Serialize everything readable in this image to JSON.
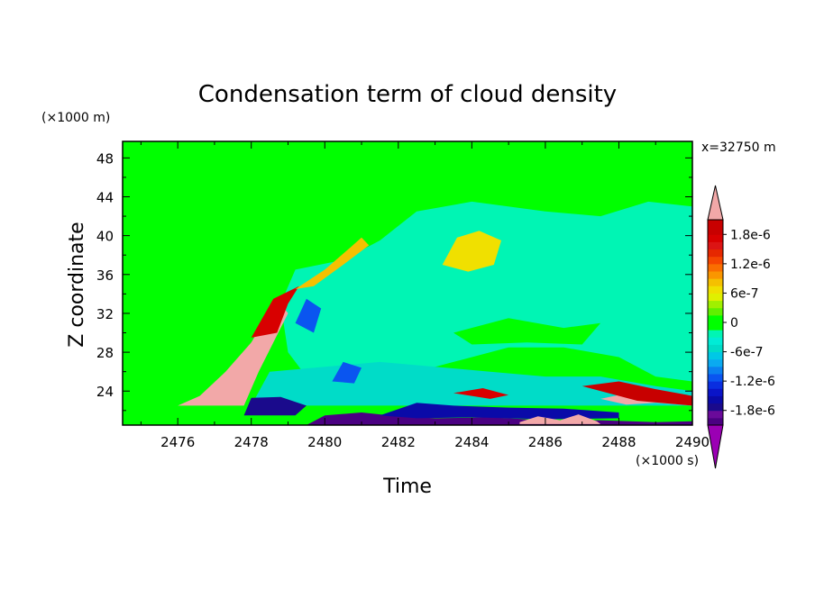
{
  "chart_data": {
    "type": "heatmap",
    "title": "Condensation term of cloud density",
    "xlabel": "Time",
    "ylabel": "Z coordinate",
    "x_unit": "(×1000 s)",
    "y_unit": "(×1000 m)",
    "annotation": "x=32750 m",
    "xlim": [
      2474.5,
      2490
    ],
    "ylim": [
      20.5,
      49.7
    ],
    "x_ticks": [
      2476,
      2478,
      2480,
      2482,
      2484,
      2486,
      2488,
      2490
    ],
    "x_tick_labels": [
      "2476",
      "2478",
      "2480",
      "2482",
      "2484",
      "2486",
      "2488",
      "2490"
    ],
    "y_ticks": [
      24,
      28,
      32,
      36,
      40,
      44,
      48
    ],
    "y_tick_labels": [
      "24",
      "28",
      "32",
      "36",
      "40",
      "44",
      "48"
    ],
    "colorbar": {
      "levels": [
        -2.1e-06,
        -1.95e-06,
        -1.8e-06,
        -1.65e-06,
        -1.5e-06,
        -1.35e-06,
        -1.2e-06,
        -1.05e-06,
        -9e-07,
        -7.5e-07,
        -6e-07,
        -4.5e-07,
        -3e-07,
        -1.5e-07,
        0,
        1.5e-07,
        3e-07,
        4.5e-07,
        6e-07,
        7.5e-07,
        9e-07,
        1.05e-06,
        1.2e-06,
        1.35e-06,
        1.5e-06,
        1.65e-06,
        1.8e-06,
        1.95e-06,
        2.1e-06
      ],
      "colors": [
        "#4b0082",
        "#6a0a9a",
        "#1a0a8c",
        "#0a0aa8",
        "#0a14c8",
        "#0a2ee0",
        "#0a55f0",
        "#0a80f0",
        "#0aaaf0",
        "#00c8e6",
        "#00dcc8",
        "#00ecd6",
        "#00f5b4",
        "#00ff00",
        "#00ff00",
        "#60f000",
        "#a0f000",
        "#e0f000",
        "#f0e000",
        "#f5c000",
        "#fa9600",
        "#fa6e00",
        "#f54600",
        "#e62800",
        "#dc1414",
        "#d80000",
        "#c80000",
        "#c80000"
      ],
      "under_color": "#9b00b4",
      "over_color": "#f2a8a8",
      "labels": [
        "1.8e-6",
        "1.2e-6",
        "6e-7",
        "0",
        "-6e-7",
        "-1.2e-6",
        "-1.8e-6"
      ],
      "label_values": [
        1.8e-06,
        1.2e-06,
        6e-07,
        0,
        -6e-07,
        -1.2e-06,
        -1.8e-06
      ]
    },
    "background_color": "#00ff00",
    "regions": [
      {
        "name": "upper-cyan-band",
        "value": -3e-07,
        "polygon": [
          [
            2479.2,
            36.5
          ],
          [
            2480.5,
            37.5
          ],
          [
            2481.5,
            39.5
          ],
          [
            2482.5,
            42.5
          ],
          [
            2484,
            43.5
          ],
          [
            2486,
            42.5
          ],
          [
            2487.5,
            42
          ],
          [
            2488.8,
            43.5
          ],
          [
            2490,
            43
          ],
          [
            2490,
            25
          ],
          [
            2489,
            25.5
          ],
          [
            2488,
            27.5
          ],
          [
            2486.5,
            28.5
          ],
          [
            2485,
            28.5
          ],
          [
            2483.5,
            27
          ],
          [
            2482,
            25.5
          ],
          [
            2480.5,
            25
          ],
          [
            2479.5,
            25.5
          ],
          [
            2479,
            28
          ],
          [
            2478.8,
            33
          ]
        ]
      },
      {
        "name": "lower-light-blue",
        "value": -6e-07,
        "polygon": [
          [
            2478.5,
            26
          ],
          [
            2480,
            26.5
          ],
          [
            2481.5,
            27
          ],
          [
            2483,
            26.5
          ],
          [
            2484.5,
            26
          ],
          [
            2486,
            25.5
          ],
          [
            2487.5,
            25.5
          ],
          [
            2489,
            24.5
          ],
          [
            2490,
            24
          ],
          [
            2490,
            22.5
          ],
          [
            2478,
            22.5
          ]
        ]
      },
      {
        "name": "green-islands",
        "value": 0,
        "polygon": [
          [
            2483.5,
            30
          ],
          [
            2485,
            31.5
          ],
          [
            2486.5,
            30.5
          ],
          [
            2487.5,
            31
          ],
          [
            2487,
            28.8
          ],
          [
            2485.5,
            29
          ],
          [
            2484,
            28.8
          ]
        ]
      },
      {
        "name": "yellow-patch-2484",
        "value": 6e-07,
        "polygon": [
          [
            2483.2,
            37
          ],
          [
            2483.6,
            39.8
          ],
          [
            2484.2,
            40.5
          ],
          [
            2484.8,
            39.5
          ],
          [
            2484.6,
            37
          ],
          [
            2483.9,
            36.3
          ]
        ]
      },
      {
        "name": "blue-patch-2479",
        "value": -1.2e-06,
        "polygon": [
          [
            2479.2,
            31
          ],
          [
            2479.5,
            33.5
          ],
          [
            2479.9,
            32.5
          ],
          [
            2479.7,
            30
          ]
        ]
      },
      {
        "name": "blue-patch-2480",
        "value": -1.2e-06,
        "polygon": [
          [
            2480.2,
            25
          ],
          [
            2480.5,
            27
          ],
          [
            2481,
            26.4
          ],
          [
            2480.8,
            24.8
          ]
        ]
      },
      {
        "name": "pink-lobe",
        "value": 2.1e-06,
        "polygon": [
          [
            2476,
            22.5
          ],
          [
            2476.6,
            23.5
          ],
          [
            2477.3,
            26
          ],
          [
            2478,
            29
          ],
          [
            2478.4,
            31.5
          ],
          [
            2478.8,
            33
          ],
          [
            2479,
            32
          ],
          [
            2478.6,
            29
          ],
          [
            2478.2,
            26
          ],
          [
            2477.8,
            22.5
          ]
        ]
      },
      {
        "name": "red-edge",
        "value": 1.65e-06,
        "polygon": [
          [
            2478,
            29.5
          ],
          [
            2478.6,
            33.5
          ],
          [
            2479.3,
            34.8
          ],
          [
            2479,
            33
          ],
          [
            2478.7,
            30
          ]
        ]
      },
      {
        "name": "yellow-streak",
        "value": 7.5e-07,
        "polygon": [
          [
            2479.2,
            34.5
          ],
          [
            2480,
            36.5
          ],
          [
            2480.7,
            38.8
          ],
          [
            2481,
            39.8
          ],
          [
            2481.2,
            39
          ],
          [
            2480.5,
            37
          ],
          [
            2479.7,
            34.8
          ]
        ]
      },
      {
        "name": "pink-2488",
        "value": 2.1e-06,
        "polygon": [
          [
            2487.5,
            23.2
          ],
          [
            2488.5,
            24
          ],
          [
            2489.4,
            23.2
          ],
          [
            2490,
            22.5
          ],
          [
            2489,
            22.8
          ],
          [
            2488.2,
            22.6
          ]
        ]
      },
      {
        "name": "red-2488",
        "value": 1.8e-06,
        "polygon": [
          [
            2487,
            24.5
          ],
          [
            2488,
            25
          ],
          [
            2489,
            24.2
          ],
          [
            2490,
            23.5
          ],
          [
            2490,
            22.5
          ],
          [
            2488.5,
            23
          ]
        ]
      },
      {
        "name": "blue-bottom-2478",
        "value": -1.8e-06,
        "polygon": [
          [
            2477.8,
            21.5
          ],
          [
            2478,
            23.3
          ],
          [
            2478.8,
            23.4
          ],
          [
            2479.5,
            22.5
          ],
          [
            2479.2,
            21.5
          ]
        ]
      },
      {
        "name": "purple-bottom-strip",
        "value": -2.1e-06,
        "polygon": [
          [
            2479.5,
            20.5
          ],
          [
            2480,
            21.5
          ],
          [
            2481,
            21.8
          ],
          [
            2482,
            21.4
          ],
          [
            2483,
            21.2
          ],
          [
            2484.5,
            21.3
          ],
          [
            2486,
            21
          ],
          [
            2487.5,
            21
          ],
          [
            2489,
            20.8
          ],
          [
            2490,
            20.9
          ],
          [
            2490,
            20.5
          ]
        ]
      },
      {
        "name": "blue-bottom-2482",
        "value": -1.65e-06,
        "polygon": [
          [
            2481.5,
            21.5
          ],
          [
            2482.5,
            22.8
          ],
          [
            2483.5,
            22.5
          ],
          [
            2485,
            22.3
          ],
          [
            2486.5,
            22.2
          ],
          [
            2488,
            21.8
          ],
          [
            2488,
            21.2
          ],
          [
            2486,
            21.1
          ],
          [
            2484,
            21.3
          ],
          [
            2482.5,
            21.2
          ]
        ]
      },
      {
        "name": "red-2484",
        "value": 1.65e-06,
        "polygon": [
          [
            2483.5,
            23.8
          ],
          [
            2484.3,
            24.3
          ],
          [
            2485,
            23.6
          ],
          [
            2484.5,
            23.2
          ]
        ]
      },
      {
        "name": "pink-bottom-spots",
        "value": 2.1e-06,
        "polygon": [
          [
            2485.3,
            20.8
          ],
          [
            2485.8,
            21.4
          ],
          [
            2486.4,
            21.0
          ],
          [
            2486.9,
            21.6
          ],
          [
            2487.4,
            20.9
          ],
          [
            2487.5,
            20.6
          ],
          [
            2485.3,
            20.6
          ]
        ]
      }
    ]
  }
}
